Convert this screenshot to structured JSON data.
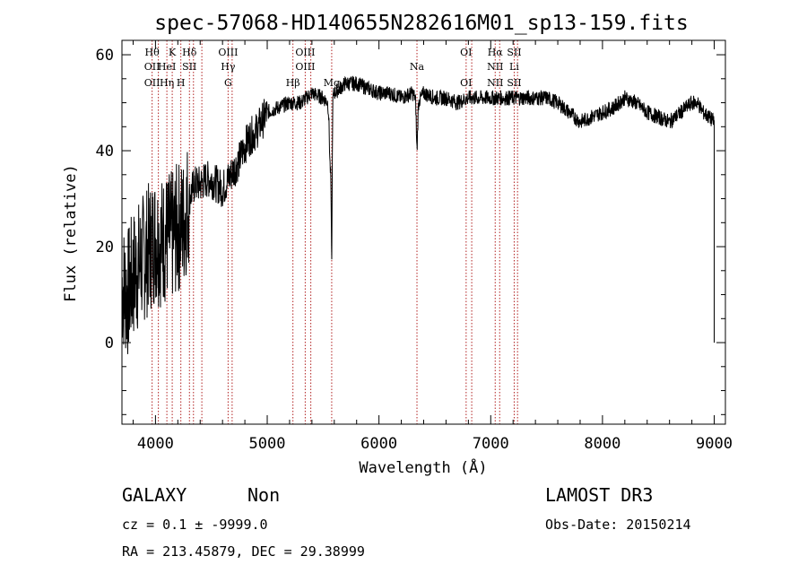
{
  "chart_data": {
    "type": "line",
    "title": "spec-57068-HD140655N282616M01_sp13-159.fits",
    "xlabel": "Wavelength (Å)",
    "ylabel": "Flux (relative)",
    "xlim": [
      3700,
      9100
    ],
    "ylim": [
      -17,
      63
    ],
    "xticks": [
      4000,
      5000,
      6000,
      7000,
      8000,
      9000
    ],
    "yticks": [
      0,
      20,
      40,
      60
    ],
    "grid": false,
    "spectrum_anchors": {
      "x": [
        3700,
        3750,
        3800,
        3850,
        3900,
        3950,
        4000,
        4050,
        4100,
        4150,
        4200,
        4250,
        4300,
        4350,
        4400,
        4450,
        4500,
        4550,
        4600,
        4650,
        4700,
        4750,
        4800,
        4850,
        4900,
        4950,
        5000,
        5100,
        5200,
        5300,
        5400,
        5500,
        5550,
        5600,
        5700,
        5800,
        5900,
        6000,
        6100,
        6200,
        6300,
        6350,
        6400,
        6500,
        6600,
        6700,
        6800,
        6900,
        7000,
        7100,
        7200,
        7300,
        7400,
        7500,
        7600,
        7700,
        7800,
        7900,
        8000,
        8100,
        8200,
        8300,
        8400,
        8500,
        8600,
        8700,
        8800,
        8850,
        8900,
        8950,
        9000
      ],
      "y": [
        12,
        10,
        14,
        16,
        18,
        20,
        22,
        21,
        22,
        22,
        24,
        25,
        30,
        33,
        33,
        34,
        34,
        33,
        32,
        34,
        36,
        38,
        41,
        43,
        44,
        46,
        48,
        49,
        50,
        50,
        52,
        51,
        50,
        52,
        54,
        54,
        53,
        52,
        52,
        51,
        52,
        50,
        52,
        51,
        51,
        50,
        51,
        51,
        51,
        51,
        51,
        51,
        51,
        51,
        50,
        48,
        46,
        47,
        48,
        49,
        51,
        50,
        48,
        47,
        46,
        48,
        50,
        50,
        48,
        47,
        46
      ]
    },
    "spectrum_noise": {
      "high_noise_until": 4300,
      "high_noise_amplitude": 14,
      "mid_noise_until": 5000,
      "mid_noise_amplitude": 4,
      "low_noise_amplitude": 1.6,
      "end_drop_value": 0
    },
    "absorption_features": [
      {
        "x": 5577,
        "depth": 28,
        "width": 6
      },
      {
        "x": 5565,
        "depth": 14,
        "width": 12
      },
      {
        "x": 6340,
        "depth": 10,
        "width": 8
      }
    ],
    "spectral_lines": [
      {
        "x": 3970,
        "top": "Hθ",
        "mid": "OII",
        "bot": "OII"
      },
      {
        "x": 4026,
        "top": "",
        "mid": "",
        "bot": ""
      },
      {
        "x": 4102,
        "top": "",
        "mid": "HeI",
        "bot": "Hη"
      },
      {
        "x": 4150,
        "top": "K",
        "mid": "",
        "bot": ""
      },
      {
        "x": 4227,
        "top": "",
        "mid": "",
        "bot": "H"
      },
      {
        "x": 4304,
        "top": "Hδ",
        "mid": "SII",
        "bot": ""
      },
      {
        "x": 4340,
        "top": "",
        "mid": "",
        "bot": ""
      },
      {
        "x": 4415,
        "top": "",
        "mid": "",
        "bot": ""
      },
      {
        "x": 4650,
        "top": "OIII",
        "mid": "Hγ",
        "bot": "G"
      },
      {
        "x": 4686,
        "top": "",
        "mid": "",
        "bot": ""
      },
      {
        "x": 5230,
        "top": "",
        "mid": "",
        "bot": "Hβ"
      },
      {
        "x": 5340,
        "top": "OIII",
        "mid": "OIII",
        "bot": ""
      },
      {
        "x": 5390,
        "top": "",
        "mid": "",
        "bot": ""
      },
      {
        "x": 5577,
        "top": "",
        "mid": "",
        "bot": "Mg"
      },
      {
        "x": 6340,
        "top": "",
        "mid": "Na",
        "bot": ""
      },
      {
        "x": 6780,
        "top": "OI",
        "mid": "",
        "bot": "OI"
      },
      {
        "x": 6830,
        "top": "",
        "mid": "",
        "bot": ""
      },
      {
        "x": 7040,
        "top": "Hα",
        "mid": "NII",
        "bot": "NII"
      },
      {
        "x": 7080,
        "top": "",
        "mid": "",
        "bot": ""
      },
      {
        "x": 7210,
        "top": "SII",
        "mid": "Li",
        "bot": "SII"
      },
      {
        "x": 7240,
        "top": "",
        "mid": "",
        "bot": ""
      }
    ]
  },
  "info": {
    "object_class": "GALAXY",
    "subclass": "Non",
    "survey": "LAMOST DR3",
    "cz_line": "cz = 0.1 ± -9999.0",
    "obs_date": "Obs-Date: 20150214",
    "radec_line": "RA = 213.45879, DEC =  29.38999"
  },
  "colors": {
    "line_marker": "#b22222",
    "spectrum": "#000000"
  }
}
